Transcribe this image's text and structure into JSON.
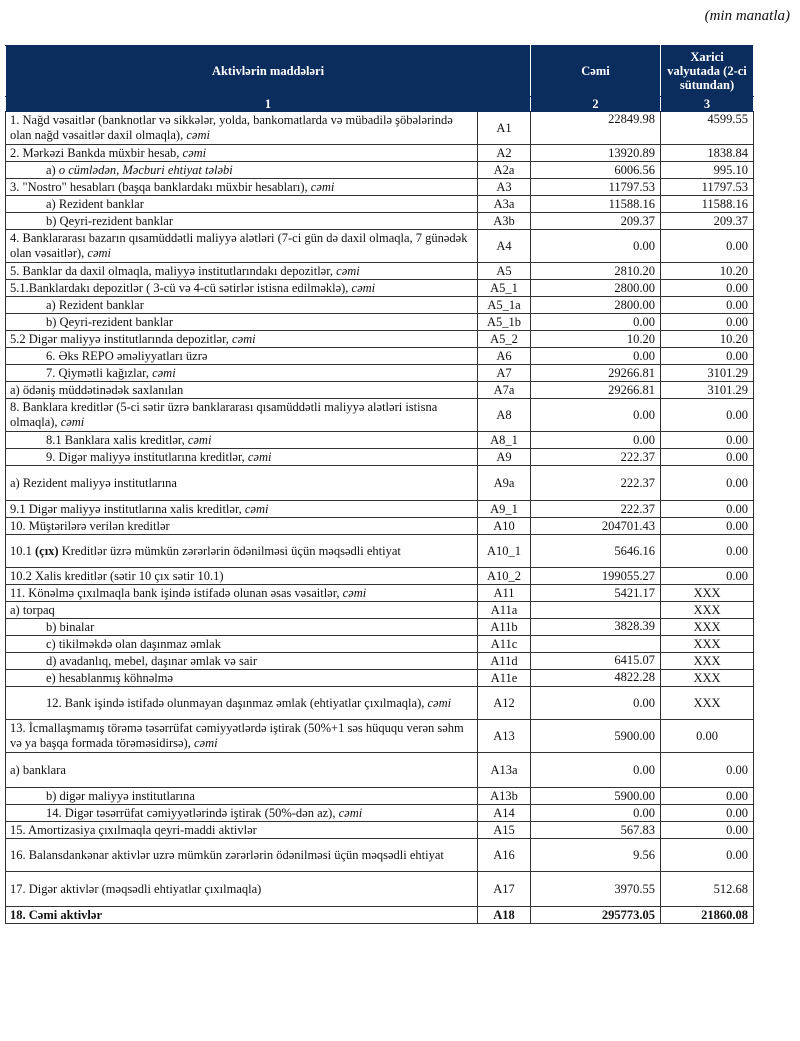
{
  "unit_note": "(min manatla)",
  "header": {
    "col1": "Aktivlərin   maddələri",
    "col2": "Cəmi",
    "col3": "Xarici valyutada (2-ci sütundan)",
    "num1": "1",
    "num2": "2",
    "num3": "3"
  },
  "rows": [
    {
      "parts": [
        {
          "text": "1. Nağd vəsaitlər (banknotlar və sikkələr, yolda, bankomatlarda və mübadilə şöbələrində olan nağd vəsaitlər daxil olmaqla), "
        },
        {
          "text": "cəmi",
          "em": true
        }
      ],
      "code": "A1",
      "total": "22849.98",
      "foreign": "4599.55"
    },
    {
      "parts": [
        {
          "text": "2. Mərkəzi Bankda müxbir hesab, "
        },
        {
          "text": "cəmi",
          "em": true
        }
      ],
      "code": "A2",
      "total": "13920.89",
      "foreign": "1838.84"
    },
    {
      "parts": [
        {
          "text": "a) "
        },
        {
          "text": "o cümlədən, Məcburi ehtiyat tələbi",
          "em": true
        }
      ],
      "code": "A2a",
      "total": "6006.56",
      "foreign": "995.10"
    },
    {
      "parts": [
        {
          "text": "3. \"Nostro\" hesabları (başqa banklardakı müxbir hesabları), "
        },
        {
          "text": "cəmi",
          "em": true
        }
      ],
      "code": "A3",
      "total": "11797.53",
      "foreign": "11797.53"
    },
    {
      "parts": [
        {
          "text": "a) Rezident banklar"
        }
      ],
      "code": "A3a",
      "total": "11588.16",
      "foreign": "11588.16"
    },
    {
      "parts": [
        {
          "text": "b) Qeyri-rezident banklar"
        }
      ],
      "code": "A3b",
      "total": "209.37",
      "foreign": "209.37"
    },
    {
      "parts": [
        {
          "text": "4. Banklararası bazarın qısamüddətli maliyyə alətləri (7-ci gün də daxil olmaqla, 7 günədək olan vəsaitlər), "
        },
        {
          "text": "cəmi",
          "em": true
        }
      ],
      "code": "A4",
      "total": "0.00",
      "foreign": "0.00"
    },
    {
      "parts": [
        {
          "text": "5. Banklar da daxil olmaqla, maliyyə institutlarındakı depozitlər, "
        },
        {
          "text": "cəmi",
          "em": true
        }
      ],
      "code": "A5",
      "total": "2810.20",
      "foreign": "10.20"
    },
    {
      "parts": [
        {
          "text": "5.1.Banklardakı depozitlər ( 3-cü və 4-cü sətirlər istisna edilməklə), "
        },
        {
          "text": "cəmi",
          "em": true
        }
      ],
      "code": "A5_1",
      "total": "2800.00",
      "foreign": "0.00"
    },
    {
      "parts": [
        {
          "text": "a) Rezident banklar"
        }
      ],
      "code": "A5_1a",
      "total": "2800.00",
      "foreign": "0.00"
    },
    {
      "parts": [
        {
          "text": "b) Qeyri-rezident banklar"
        }
      ],
      "code": "A5_1b",
      "total": "0.00",
      "foreign": "0.00"
    },
    {
      "parts": [
        {
          "text": "5.2 Digər maliyyə institutlarında depozitlər, "
        },
        {
          "text": "cəmi",
          "em": true
        }
      ],
      "code": "A5_2",
      "total": "10.20",
      "foreign": "10.20"
    },
    {
      "parts": [
        {
          "text": "6. Əks REPO əməliyyatları üzrə"
        }
      ],
      "code": "A6",
      "total": "0.00",
      "foreign": "0.00"
    },
    {
      "parts": [
        {
          "text": "7. Qiymətli kağızlar, "
        },
        {
          "text": "cəmi",
          "em": true
        }
      ],
      "code": "A7",
      "total": "29266.81",
      "foreign": "3101.29"
    },
    {
      "parts": [
        {
          "text": "a) ödəniş müddətinədək saxlanılan"
        }
      ],
      "code": "A7a",
      "total": "29266.81",
      "foreign": "3101.29"
    },
    {
      "parts": [
        {
          "text": "8. Banklara kreditlər (5-ci sətir üzrə banklararası qısamüddətli maliyyə alətləri istisna olmaqla), "
        },
        {
          "text": "cəmi",
          "em": true
        }
      ],
      "code": "A8",
      "total": "0.00",
      "foreign": "0.00"
    },
    {
      "parts": [
        {
          "text": "8.1 Banklara xalis kreditlər, "
        },
        {
          "text": "cəmi",
          "em": true
        }
      ],
      "code": "A8_1",
      "total": "0.00",
      "foreign": "0.00"
    },
    {
      "parts": [
        {
          "text": "9. Digər maliyyə institutlarına kreditlər, "
        },
        {
          "text": "cəmi",
          "em": true
        }
      ],
      "code": "A9",
      "total": "222.37",
      "foreign": "0.00"
    },
    {
      "parts": [
        {
          "text": "a) Rezident maliyyə institutlarına"
        }
      ],
      "code": "A9a",
      "total": "222.37",
      "foreign": "0.00"
    },
    {
      "parts": [
        {
          "text": "9.1 Digər maliyyə institutlarına xalis kreditlər, "
        },
        {
          "text": "cəmi",
          "em": true
        }
      ],
      "code": "A9_1",
      "total": "222.37",
      "foreign": "0.00"
    },
    {
      "parts": [
        {
          "text": "10. Müştərilərə verilən kreditlər"
        }
      ],
      "code": "A10",
      "total": "204701.43",
      "foreign": "0.00"
    },
    {
      "parts": [
        {
          "text": "10.1 "
        },
        {
          "text": "(çıx)",
          "bold": true
        },
        {
          "text": " Kreditlər üzrə mümkün zərərlərin ödənilməsi üçün məqsədli ehtiyat"
        }
      ],
      "code": "A10_1",
      "total": "5646.16",
      "foreign": "0.00"
    },
    {
      "parts": [
        {
          "text": "10.2 Xalis kreditlər (sətir 10 çıx sətir 10.1)"
        }
      ],
      "code": "A10_2",
      "total": "199055.27",
      "foreign": "0.00"
    },
    {
      "parts": [
        {
          "text": "11. Könəlmə çıxılmaqla bank işində istifadə olunan əsas vəsaitlər, "
        },
        {
          "text": "cəmi",
          "em": true
        }
      ],
      "code": "A11",
      "total": "5421.17",
      "foreign": "XXX"
    },
    {
      "parts": [
        {
          "text": "a) torpaq"
        }
      ],
      "code": "A11a",
      "total": "",
      "foreign": "XXX"
    },
    {
      "parts": [
        {
          "text": "b) binalar"
        }
      ],
      "code": "A11b",
      "total": "3828.39",
      "foreign": "XXX"
    },
    {
      "parts": [
        {
          "text": "c) tikilməkdə olan daşınmaz əmlak"
        }
      ],
      "code": "A11c",
      "total": "",
      "foreign": "XXX"
    },
    {
      "parts": [
        {
          "text": "d) avadanlıq, mebel, daşınar əmlak və sair"
        }
      ],
      "code": "A11d",
      "total": "6415.07",
      "foreign": "XXX"
    },
    {
      "parts": [
        {
          "text": "e) hesablanmış köhnəlmə"
        }
      ],
      "code": "A11e",
      "total": "4822.28",
      "foreign": "XXX"
    },
    {
      "parts": [
        {
          "text": "12. Bank işində istifadə olunmayan daşınmaz əmlak (ehtiyatlar çıxılmaqla), "
        },
        {
          "text": "cəmi",
          "em": true
        }
      ],
      "code": "A12",
      "total": "0.00",
      "foreign": "XXX"
    },
    {
      "parts": [
        {
          "text": "13. İcmallaşmamış törəmə təsərrüfat cəmiyyətlərdə iştirak (50%+1 səs hüququ verən səhm və ya başqa formada törəməsidirsə), "
        },
        {
          "text": "cəmi",
          "em": true
        }
      ],
      "code": "A13",
      "total": "5900.00",
      "foreign": "0.00"
    },
    {
      "parts": [
        {
          "text": "a) banklara"
        }
      ],
      "code": "A13a",
      "total": "0.00",
      "foreign": "0.00"
    },
    {
      "parts": [
        {
          "text": "b) digər maliyyə institutlarına"
        }
      ],
      "code": "A13b",
      "total": "5900.00",
      "foreign": "0.00"
    },
    {
      "parts": [
        {
          "text": "14. Digər təsərrüfat cəmiyyətlərində iştirak (50%-dən az), "
        },
        {
          "text": "cəmi",
          "em": true
        }
      ],
      "code": "A14",
      "total": "0.00",
      "foreign": "0.00"
    },
    {
      "parts": [
        {
          "text": "15. Amortizasiya çıxılmaqla qeyri-maddi aktivlər"
        }
      ],
      "code": "A15",
      "total": "567.83",
      "foreign": "0.00"
    },
    {
      "parts": [
        {
          "text": "16. Balansdankənar aktivlər uzrə mümkün zərərlərin ödənilməsi üçün məqsədli ehtiyat"
        }
      ],
      "code": "A16",
      "total": "9.56",
      "foreign": "0.00"
    },
    {
      "parts": [
        {
          "text": "17. Digər aktivlər (məqsədli ehtiyatlar çıxılmaqla)"
        }
      ],
      "code": "A17",
      "total": "3970.55",
      "foreign": "512.68"
    },
    {
      "parts": [
        {
          "text": "18. Cəmi aktivlər"
        }
      ],
      "code": "A18",
      "total": "295773.05",
      "foreign": "21860.08"
    }
  ]
}
